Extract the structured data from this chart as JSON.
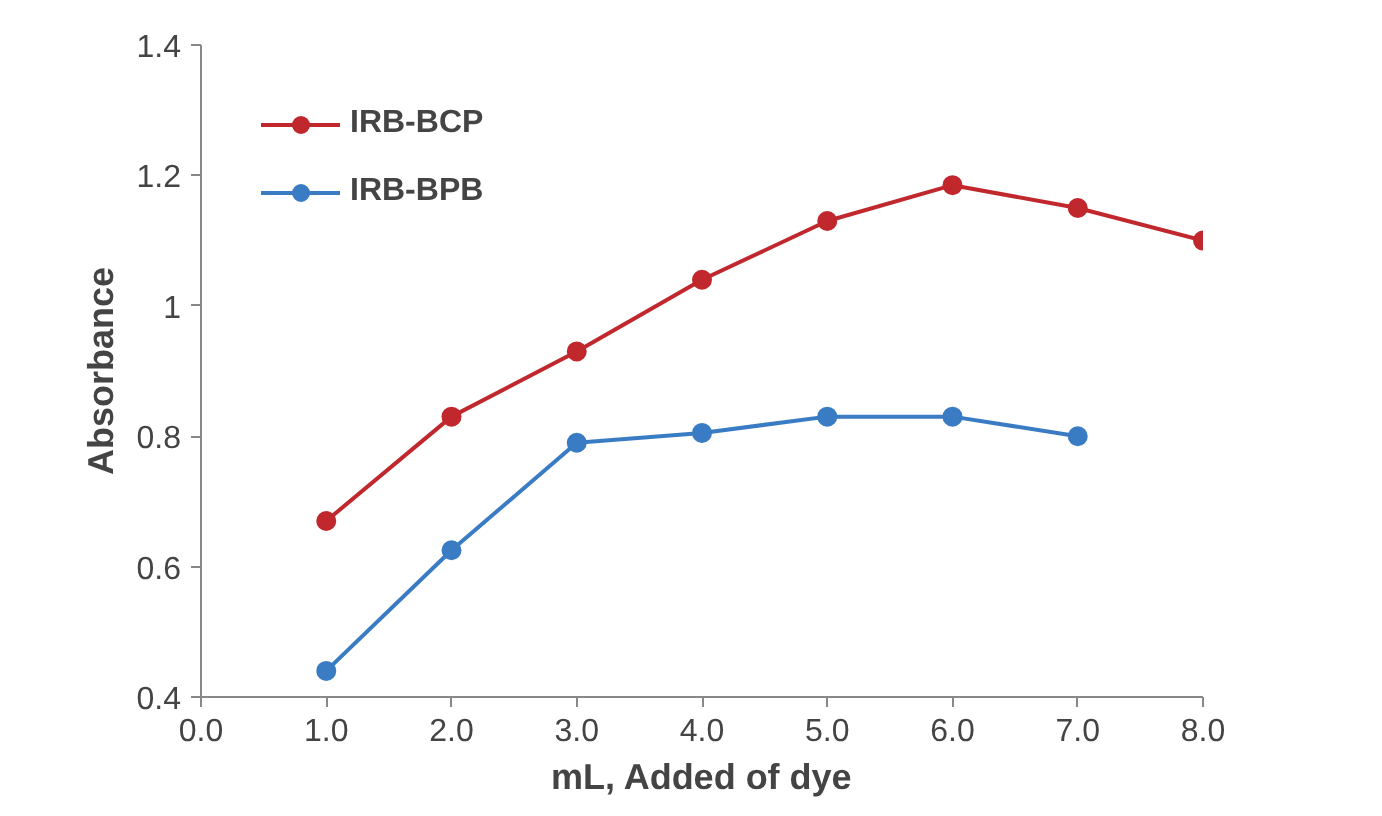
{
  "chart_data": {
    "type": "line",
    "xlabel": "mL, Added of dye",
    "ylabel": "Absorbance",
    "xlim": [
      0,
      8
    ],
    "ylim": [
      0.4,
      1.4
    ],
    "xticks": [
      {
        "value": 0,
        "label": "0.0"
      },
      {
        "value": 1,
        "label": "1.0"
      },
      {
        "value": 2,
        "label": "2.0"
      },
      {
        "value": 3,
        "label": "3.0"
      },
      {
        "value": 4,
        "label": "4.0"
      },
      {
        "value": 5,
        "label": "5.0"
      },
      {
        "value": 6,
        "label": "6.0"
      },
      {
        "value": 7,
        "label": "7.0"
      },
      {
        "value": 8,
        "label": "8.0"
      }
    ],
    "yticks": [
      0.4,
      0.6,
      0.8,
      1,
      1.2,
      1.4
    ],
    "series": [
      {
        "name": "IRB-BCP",
        "color": "#c0282d",
        "x": [
          1,
          2,
          3,
          4,
          5,
          6,
          7,
          8
        ],
        "values": [
          0.67,
          0.83,
          0.93,
          1.04,
          1.13,
          1.185,
          1.15,
          1.1
        ]
      },
      {
        "name": "IRB-BPB",
        "color": "#3a7cc4",
        "x": [
          1,
          2,
          3,
          4,
          5,
          6,
          7
        ],
        "values": [
          0.44,
          0.625,
          0.79,
          0.805,
          0.83,
          0.83,
          0.8
        ]
      }
    ],
    "marker": "circle",
    "line_style": "solid",
    "grid": false,
    "legend": "top left"
  }
}
